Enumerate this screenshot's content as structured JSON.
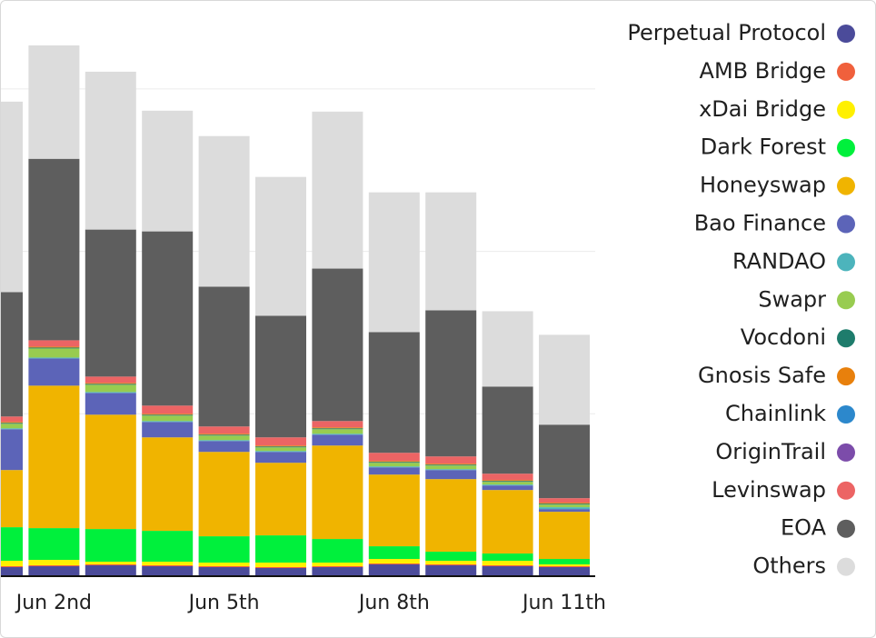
{
  "chart_data": {
    "type": "stacked_bar",
    "categories": [
      null,
      "Jun 2nd",
      null,
      null,
      "Jun 5th",
      null,
      null,
      "Jun 8th",
      null,
      null,
      "Jun 11th"
    ],
    "ylim": [
      0,
      633
    ],
    "yticks": [
      178,
      357,
      536
    ],
    "grid": true,
    "series": [
      {
        "name": "Perpetual Protocol",
        "color": "#4b4b9a",
        "values": [
          9,
          10,
          11,
          10,
          9,
          8,
          9,
          12,
          11,
          10,
          9
        ]
      },
      {
        "name": "AMB Bridge",
        "color": "#f0603c",
        "values": [
          1,
          1,
          1,
          1,
          1,
          1,
          1,
          1,
          1,
          1,
          1
        ]
      },
      {
        "name": "xDai Bridge",
        "color": "#fff000",
        "values": [
          6,
          6,
          3,
          4,
          4,
          5,
          4,
          5,
          4,
          5,
          2
        ]
      },
      {
        "name": "Dark Forest",
        "color": "#00f03c",
        "values": [
          37,
          35,
          36,
          34,
          29,
          30,
          26,
          14,
          10,
          8,
          6
        ]
      },
      {
        "name": "Honeyswap",
        "color": "#f0b400",
        "values": [
          63,
          157,
          126,
          103,
          93,
          80,
          103,
          79,
          80,
          70,
          52
        ]
      },
      {
        "name": "Bao Finance",
        "color": "#5c64b8",
        "values": [
          45,
          30,
          24,
          17,
          12,
          12,
          12,
          8,
          10,
          5,
          3
        ]
      },
      {
        "name": "RANDAO",
        "color": "#4cb4bc",
        "values": [
          1,
          1,
          1,
          1,
          1,
          1,
          1,
          1,
          1,
          1,
          2
        ]
      },
      {
        "name": "Swapr",
        "color": "#98cc50",
        "values": [
          5,
          10,
          8,
          6,
          5,
          4,
          5,
          4,
          4,
          3,
          3
        ]
      },
      {
        "name": "Vocdoni",
        "color": "#1e7c6c",
        "values": [
          1,
          1,
          1,
          1,
          1,
          1,
          1,
          1,
          1,
          1,
          1
        ]
      },
      {
        "name": "Gnosis Safe",
        "color": "#e8800c",
        "values": [
          1,
          1,
          1,
          1,
          1,
          1,
          1,
          1,
          1,
          1,
          1
        ]
      },
      {
        "name": "Chainlink",
        "color": "#2c88cc",
        "values": [
          0,
          0,
          0,
          0,
          0,
          0,
          0,
          0,
          0,
          0,
          0
        ]
      },
      {
        "name": "OriginTrail",
        "color": "#7c4caa",
        "values": [
          0,
          0,
          0,
          0,
          0,
          0,
          0,
          0,
          0,
          0,
          0
        ]
      },
      {
        "name": "Levinswap",
        "color": "#ec6464",
        "values": [
          6,
          7,
          7,
          9,
          8,
          9,
          7,
          9,
          8,
          7,
          5
        ]
      },
      {
        "name": "EOA",
        "color": "#5e5e5e",
        "values": [
          137,
          200,
          162,
          192,
          154,
          134,
          168,
          133,
          161,
          96,
          81
        ]
      },
      {
        "name": "Others",
        "color": "#dcdcdc",
        "values": [
          210,
          125,
          174,
          133,
          166,
          153,
          173,
          154,
          130,
          83,
          99
        ]
      }
    ]
  }
}
